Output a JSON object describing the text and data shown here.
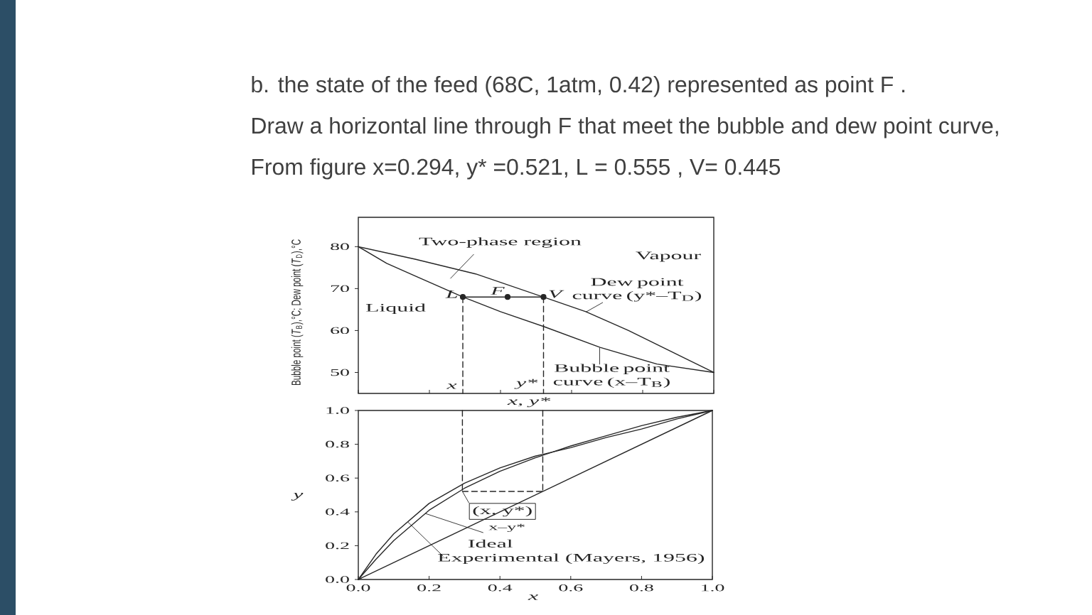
{
  "chart_data": [
    {
      "type": "line",
      "title": "b. the state of the feed (68C, 1atm, 0.42) represented as point F .",
      "subtitle": "Draw a horizontal line through F that meet the bubble and dew point curve,",
      "xlabel": "x, y*",
      "ylabel": "Bubble point (*T*$_{B}$),°C; Dew point (*T*$_{D}$),°C",
      "xlim": [
        0,
        1
      ],
      "ylim": [
        45,
        87
      ],
      "xticks": [
        0,
        0.2,
        0.4,
        0.6,
        0.8,
        1
      ],
      "yticks": [
        50,
        60,
        70,
        80
      ],
      "tick_labels": "y",
      "series": [
        {
          "name": "Dew point curve (y*–T$_{D}$)",
          "color": "#262626",
          "x": [
            0,
            0.16,
            0.33,
            0.52,
            0.64,
            0.76,
            0.88,
            1
          ],
          "values": [
            80,
            77,
            73.5,
            68,
            64.5,
            60,
            55,
            50
          ]
        },
        {
          "name": "Bubble point curve (x–T$_{B}$)",
          "color": "#262626",
          "x": [
            0,
            0.08,
            0.16,
            0.294,
            0.4,
            0.52,
            0.68,
            0.84,
            1
          ],
          "values": [
            80,
            76,
            73,
            68,
            64.5,
            61,
            56,
            52,
            50
          ]
        },
        {
          "color": "#262626",
          "marker": "circle",
          "x": [
            0.294,
            0.42,
            0.521
          ],
          "values": [
            68,
            68,
            68
          ]
        },
        {
          "color": "#262626",
          "line_style": "dashed",
          "x": [
            0.294,
            0.294
          ],
          "values": [
            68,
            45
          ]
        },
        {
          "color": "#262626",
          "line_style": "dashed",
          "x": [
            0.521,
            0.521
          ],
          "values": [
            68,
            45
          ]
        }
      ],
      "annotations": [
        "From figure x=0.294, y* =0.521, L = 0.555 , V= 0.445",
        "Two-phase region",
        "Vapour",
        "Liquid",
        {
          "text": "L",
          "x": 0.294,
          "y": 68
        },
        {
          "text": "F",
          "x": 0.42,
          "y": 68
        },
        {
          "text": "V",
          "x": 0.521,
          "y": 68
        },
        {
          "text": "x",
          "x": 0.294,
          "y": 45
        },
        {
          "text": "y*",
          "x": 0.521,
          "y": 45
        }
      ]
    },
    {
      "type": "line",
      "xlabel": "x",
      "ylabel": "y",
      "xlim": [
        0,
        1
      ],
      "ylim": [
        0,
        1
      ],
      "xticks": [
        {
          "value": 0,
          "label": "0.0"
        },
        {
          "value": 0.2,
          "label": "0.2"
        },
        {
          "value": 0.4,
          "label": "0.4"
        },
        {
          "value": 0.6,
          "label": "0.6"
        },
        {
          "value": 0.8,
          "label": "0.8"
        },
        {
          "value": 1,
          "label": "1.0"
        }
      ],
      "yticks": [
        {
          "value": 0,
          "label": "0.0"
        },
        {
          "value": 0.2,
          "label": "0.2"
        },
        {
          "value": 0.4,
          "label": "0.4"
        },
        {
          "value": 0.6,
          "label": "0.6"
        },
        {
          "value": 0.8,
          "label": "0.8"
        },
        {
          "value": 1,
          "label": "1.0"
        }
      ],
      "series": [
        {
          "color": "#262626",
          "x": [
            0,
            0.05,
            0.1,
            0.2,
            0.3,
            0.4,
            0.5,
            0.6,
            0.7,
            0.8,
            0.9,
            1
          ],
          "values": [
            0,
            0.12,
            0.23,
            0.41,
            0.54,
            0.64,
            0.72,
            0.79,
            0.85,
            0.91,
            0.96,
            1
          ]
        },
        {
          "color": "#262626",
          "x": [
            0,
            0.05,
            0.1,
            0.2,
            0.3,
            0.4,
            0.5,
            0.6,
            0.7,
            0.8,
            0.9,
            1
          ],
          "values": [
            0,
            0.15,
            0.27,
            0.45,
            0.57,
            0.66,
            0.73,
            0.78,
            0.84,
            0.89,
            0.95,
            1
          ]
        },
        {
          "color": "#262626",
          "x": [
            0,
            1
          ],
          "values": [
            0,
            1
          ]
        },
        {
          "color": "#262626",
          "line_style": "dashed",
          "x": [
            0.294,
            0.294
          ],
          "values": [
            1,
            0.521
          ]
        },
        {
          "color": "#262626",
          "line_style": "dashed",
          "x": [
            0.521,
            0.521
          ],
          "values": [
            1,
            0.521
          ]
        },
        {
          "color": "#262626",
          "line_style": "dashed",
          "x": [
            0.294,
            0.521
          ],
          "values": [
            0.521,
            0.521
          ]
        }
      ],
      "annotations": [
        {
          "text": "(x, y*)",
          "x": 0.294,
          "y": 0.521
        },
        {
          "text": "Ideal",
          "x": 0.19,
          "y": 0.39
        },
        {
          "text": "x–y*",
          "x": 0.19,
          "y": 0.39
        },
        {
          "text": "Experimental (Mayers, 1956)",
          "x": 0.14,
          "y": 0.34
        }
      ]
    }
  ]
}
